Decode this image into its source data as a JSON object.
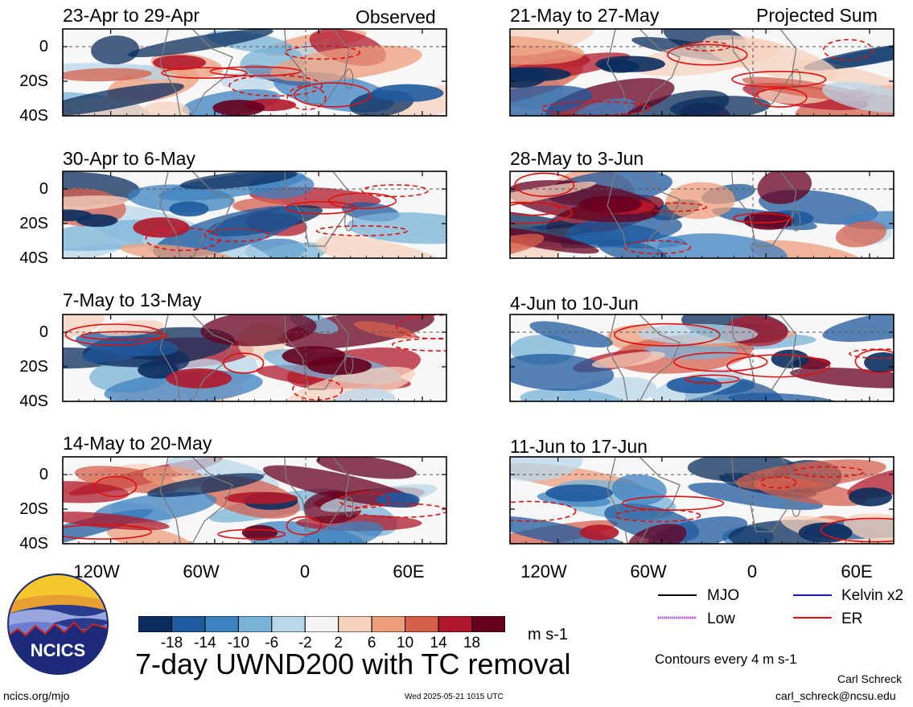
{
  "chart_data": {
    "type": "heatmap",
    "variable": "UWND200",
    "panels_left_tag": "Observed",
    "panels_right_tag": "Projected Sum",
    "panels": [
      {
        "title": "23-Apr to 29-Apr",
        "column": "observed"
      },
      {
        "title": "30-Apr to 6-May",
        "column": "observed"
      },
      {
        "title": "7-May to 13-May",
        "column": "observed"
      },
      {
        "title": "14-May to 20-May",
        "column": "observed"
      },
      {
        "title": "21-May to 27-May",
        "column": "projected"
      },
      {
        "title": "28-May to 3-Jun",
        "column": "projected"
      },
      {
        "title": "4-Jun to 10-Jun",
        "column": "projected"
      },
      {
        "title": "11-Jun to 17-Jun",
        "column": "projected"
      }
    ],
    "y_ticks": [
      "0",
      "20S",
      "40S"
    ],
    "x_ticks": [
      "120W",
      "60W",
      "0",
      "60E"
    ],
    "colorbar": {
      "ticks": [
        "-18",
        "-14",
        "-10",
        "-6",
        "-2",
        "2",
        "6",
        "10",
        "14",
        "18"
      ],
      "colors": [
        "#0b2d5e",
        "#1f5a9e",
        "#3d82c0",
        "#7ab3d8",
        "#b9d7ea",
        "#f4f4f4",
        "#f7d2bd",
        "#ee9e7c",
        "#d6604d",
        "#b2182b",
        "#67001f"
      ],
      "units": "m s-1"
    },
    "legend": [
      {
        "label": "MJO",
        "color": "#000000",
        "style": "solid"
      },
      {
        "label": "Kelvin x2",
        "color": "#1a1adb",
        "style": "solid"
      },
      {
        "label": "Low",
        "color": "#b040d0",
        "style": "dotted"
      },
      {
        "label": "ER",
        "color": "#e01010",
        "style": "solid"
      }
    ],
    "contour_note": "Contours every 4 m s-1",
    "main_title": "7-day UWND200 with TC removal"
  },
  "footer": {
    "logo_text": "NCICS",
    "site": "ncics.org/mjo",
    "timestamp": "Wed 2025-05-21 1015 UTC",
    "author": "Carl Schreck",
    "email": "carl_schreck@ncsu.edu"
  }
}
